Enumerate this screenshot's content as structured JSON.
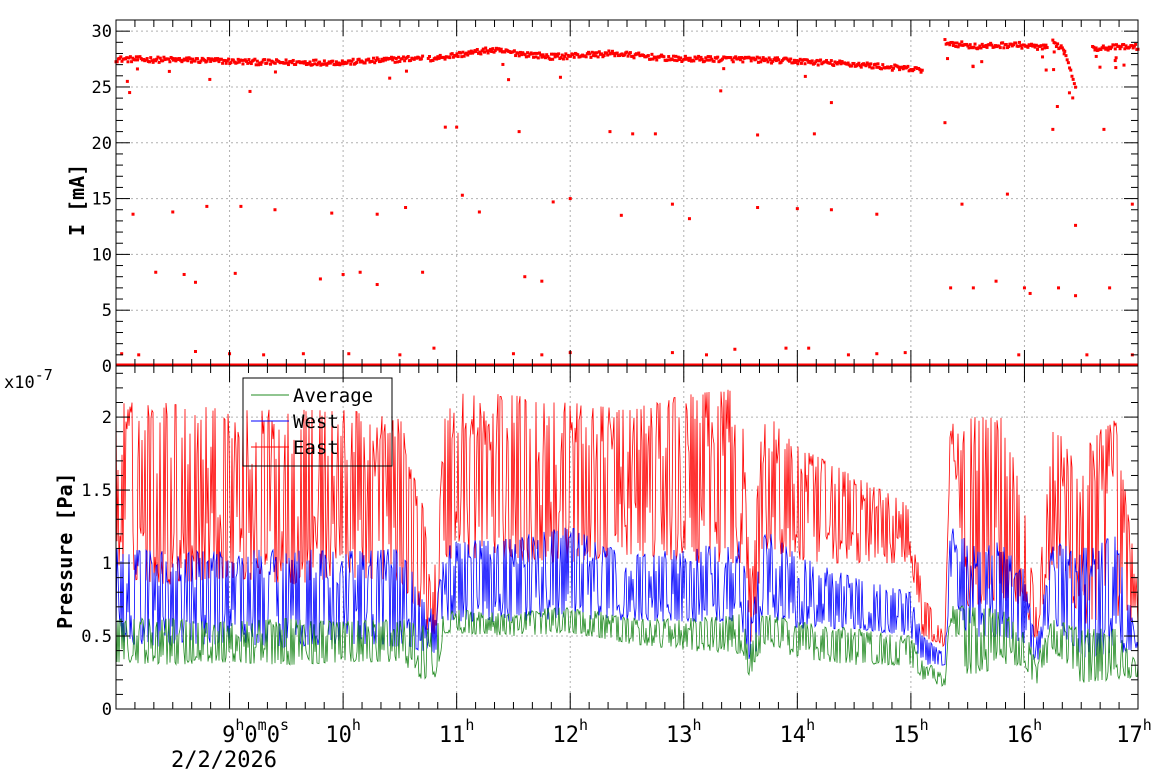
{
  "chart_data": [
    {
      "type": "scatter",
      "panel": "top",
      "ylabel": "I [mA]",
      "ylim": [
        0,
        31
      ],
      "yticks": [
        0,
        5,
        10,
        15,
        20,
        25,
        30
      ],
      "grid": true,
      "x_range_hours": [
        8.0,
        17.0
      ],
      "series": [
        {
          "color": "#ff0000",
          "baseline_segments": [
            {
              "from": 8.0,
              "to": 10.7,
              "values": [
                27.5,
                27.4,
                27.2,
                27.2,
                27.6
              ]
            },
            {
              "from": 10.75,
              "to": 15.1,
              "values": [
                27.5,
                28.3,
                27.7,
                28.0,
                27.5,
                27.5,
                27.3,
                27.0,
                26.5
              ]
            },
            {
              "from": 15.3,
              "to": 16.2,
              "values": [
                29.0,
                28.6,
                28.8,
                28.5
              ]
            },
            {
              "from": 16.25,
              "to": 16.45,
              "values": [
                29.0,
                28.4,
                25.1
              ]
            },
            {
              "from": 16.6,
              "to": 17.0,
              "values": [
                28.5,
                28.6
              ]
            }
          ],
          "outlier_points": [
            [
              8.1,
              25.5
            ],
            [
              8.12,
              24.5
            ],
            [
              9.18,
              24.6
            ],
            [
              10.9,
              21.4
            ],
            [
              11.0,
              21.4
            ],
            [
              11.55,
              21.0
            ],
            [
              12.35,
              21.0
            ],
            [
              12.55,
              20.8
            ],
            [
              12.75,
              20.8
            ],
            [
              13.65,
              20.7
            ],
            [
              14.15,
              20.8
            ],
            [
              15.3,
              21.8
            ],
            [
              16.25,
              21.2
            ],
            [
              16.7,
              21.2
            ],
            [
              14.3,
              23.6
            ],
            [
              8.15,
              13.6
            ],
            [
              8.5,
              13.8
            ],
            [
              8.8,
              14.3
            ],
            [
              9.1,
              14.3
            ],
            [
              9.4,
              14.0
            ],
            [
              9.9,
              13.7
            ],
            [
              10.3,
              13.6
            ],
            [
              10.55,
              14.2
            ],
            [
              11.05,
              15.3
            ],
            [
              11.2,
              13.8
            ],
            [
              11.85,
              14.7
            ],
            [
              12.0,
              15.0
            ],
            [
              12.45,
              13.5
            ],
            [
              12.9,
              14.5
            ],
            [
              13.05,
              13.2
            ],
            [
              13.65,
              14.2
            ],
            [
              14.0,
              14.1
            ],
            [
              14.3,
              14.0
            ],
            [
              14.7,
              13.6
            ],
            [
              15.45,
              14.5
            ],
            [
              15.85,
              15.4
            ],
            [
              16.45,
              12.6
            ],
            [
              16.95,
              14.5
            ],
            [
              8.35,
              8.4
            ],
            [
              8.6,
              8.2
            ],
            [
              8.7,
              7.5
            ],
            [
              9.05,
              8.3
            ],
            [
              9.8,
              7.8
            ],
            [
              10.0,
              8.2
            ],
            [
              10.15,
              8.4
            ],
            [
              10.3,
              7.3
            ],
            [
              10.7,
              8.4
            ],
            [
              11.6,
              8.0
            ],
            [
              11.75,
              7.6
            ],
            [
              15.35,
              7.0
            ],
            [
              15.55,
              7.0
            ],
            [
              15.75,
              7.6
            ],
            [
              16.0,
              7.0
            ],
            [
              16.05,
              6.5
            ],
            [
              16.3,
              7.0
            ],
            [
              16.45,
              6.3
            ],
            [
              16.75,
              7.0
            ],
            [
              8.05,
              1.1
            ],
            [
              8.2,
              1.0
            ],
            [
              8.7,
              1.3
            ],
            [
              9.0,
              1.1
            ],
            [
              9.3,
              1.0
            ],
            [
              9.65,
              1.1
            ],
            [
              10.05,
              1.1
            ],
            [
              10.5,
              1.0
            ],
            [
              10.8,
              1.6
            ],
            [
              11.5,
              1.1
            ],
            [
              11.75,
              1.0
            ],
            [
              12.0,
              1.2
            ],
            [
              12.9,
              1.2
            ],
            [
              13.2,
              1.0
            ],
            [
              13.45,
              1.5
            ],
            [
              13.9,
              1.6
            ],
            [
              14.1,
              1.6
            ],
            [
              14.45,
              1.0
            ],
            [
              14.7,
              1.1
            ],
            [
              14.95,
              1.2
            ],
            [
              15.95,
              1.0
            ],
            [
              16.55,
              1.0
            ],
            [
              16.95,
              1.0
            ]
          ],
          "zero_level": 0.0
        }
      ]
    },
    {
      "type": "line",
      "panel": "bottom",
      "ylabel": "Pressure [Pa]",
      "y_exponent_label": "x10",
      "y_exponent_power": "-7",
      "ylim": [
        0,
        2.35
      ],
      "yticks": [
        0,
        0.5,
        1,
        1.5,
        2
      ],
      "ytick_labels": [
        "0",
        "0.5",
        "1",
        "1.5",
        "2"
      ],
      "grid": true,
      "legend": {
        "placement": "top-left"
      },
      "x_range_hours": [
        8.0,
        17.0
      ],
      "series": [
        {
          "name": "Average",
          "color": "#228b22",
          "envelope": [
            [
              8.0,
              0.32,
              0.62
            ],
            [
              8.5,
              0.3,
              0.62
            ],
            [
              9.0,
              0.32,
              0.6
            ],
            [
              9.5,
              0.3,
              0.62
            ],
            [
              10.0,
              0.32,
              0.6
            ],
            [
              10.5,
              0.32,
              0.62
            ],
            [
              10.7,
              0.2,
              0.58
            ],
            [
              10.8,
              0.17,
              0.55
            ],
            [
              10.9,
              0.52,
              0.66
            ],
            [
              11.0,
              0.52,
              0.68
            ],
            [
              11.5,
              0.5,
              0.65
            ],
            [
              12.0,
              0.52,
              0.72
            ],
            [
              12.5,
              0.45,
              0.62
            ],
            [
              13.0,
              0.4,
              0.62
            ],
            [
              13.5,
              0.38,
              0.65
            ],
            [
              13.6,
              0.18,
              0.45
            ],
            [
              13.7,
              0.45,
              0.66
            ],
            [
              14.0,
              0.35,
              0.6
            ],
            [
              14.5,
              0.3,
              0.55
            ],
            [
              15.0,
              0.3,
              0.5
            ],
            [
              15.1,
              0.2,
              0.35
            ],
            [
              15.3,
              0.15,
              0.22
            ],
            [
              15.35,
              0.6,
              0.72
            ],
            [
              15.5,
              0.2,
              0.7
            ],
            [
              15.8,
              0.3,
              0.68
            ],
            [
              16.0,
              0.3,
              0.55
            ],
            [
              16.1,
              0.15,
              0.35
            ],
            [
              16.25,
              0.4,
              0.62
            ],
            [
              16.5,
              0.18,
              0.55
            ],
            [
              16.8,
              0.2,
              0.55
            ],
            [
              17.0,
              0.22,
              0.3
            ]
          ]
        },
        {
          "name": "West",
          "color": "#0000ff",
          "envelope": [
            [
              8.0,
              0.45,
              1.1
            ],
            [
              8.5,
              0.42,
              1.08
            ],
            [
              9.0,
              0.45,
              1.08
            ],
            [
              9.5,
              0.42,
              1.1
            ],
            [
              10.0,
              0.45,
              1.08
            ],
            [
              10.5,
              0.42,
              1.1
            ],
            [
              10.7,
              0.4,
              0.8
            ],
            [
              10.8,
              0.35,
              0.65
            ],
            [
              10.9,
              0.6,
              1.1
            ],
            [
              11.0,
              0.6,
              1.15
            ],
            [
              11.5,
              0.6,
              1.18
            ],
            [
              12.0,
              0.62,
              1.25
            ],
            [
              12.5,
              0.6,
              1.05
            ],
            [
              13.0,
              0.6,
              1.1
            ],
            [
              13.5,
              0.6,
              1.15
            ],
            [
              13.6,
              0.25,
              0.6
            ],
            [
              13.7,
              0.65,
              1.25
            ],
            [
              14.0,
              0.55,
              1.05
            ],
            [
              14.5,
              0.55,
              0.9
            ],
            [
              15.0,
              0.5,
              0.8
            ],
            [
              15.1,
              0.3,
              0.5
            ],
            [
              15.3,
              0.3,
              0.38
            ],
            [
              15.35,
              0.9,
              1.25
            ],
            [
              15.5,
              0.45,
              1.15
            ],
            [
              15.8,
              0.5,
              1.15
            ],
            [
              16.0,
              0.45,
              0.95
            ],
            [
              16.1,
              0.3,
              0.45
            ],
            [
              16.25,
              0.6,
              1.15
            ],
            [
              16.5,
              0.35,
              1.1
            ],
            [
              16.8,
              0.38,
              1.2
            ],
            [
              17.0,
              0.4,
              0.45
            ]
          ]
        },
        {
          "name": "East",
          "color": "#ff0000",
          "envelope": [
            [
              8.0,
              0.9,
              2.1
            ],
            [
              8.5,
              0.85,
              2.1
            ],
            [
              9.0,
              0.9,
              2.05
            ],
            [
              9.5,
              0.85,
              2.05
            ],
            [
              10.0,
              0.9,
              2.05
            ],
            [
              10.5,
              0.88,
              2.0
            ],
            [
              10.7,
              0.6,
              1.4
            ],
            [
              10.8,
              0.45,
              0.9
            ],
            [
              10.9,
              1.0,
              2.05
            ],
            [
              11.0,
              1.05,
              2.18
            ],
            [
              11.5,
              1.0,
              2.15
            ],
            [
              12.0,
              1.0,
              2.1
            ],
            [
              12.5,
              1.05,
              2.05
            ],
            [
              13.0,
              1.0,
              2.15
            ],
            [
              13.5,
              1.0,
              2.2
            ],
            [
              13.6,
              0.4,
              0.9
            ],
            [
              13.7,
              1.1,
              2.1
            ],
            [
              14.0,
              1.0,
              1.8
            ],
            [
              14.5,
              1.0,
              1.6
            ],
            [
              15.0,
              1.0,
              1.4
            ],
            [
              15.1,
              0.5,
              0.8
            ],
            [
              15.3,
              0.42,
              0.5
            ],
            [
              15.35,
              1.9,
              2.05
            ],
            [
              15.5,
              0.7,
              2.0
            ],
            [
              15.8,
              0.75,
              2.0
            ],
            [
              16.0,
              0.7,
              1.5
            ],
            [
              16.1,
              0.45,
              0.7
            ],
            [
              16.25,
              1.0,
              1.9
            ],
            [
              16.5,
              0.55,
              1.8
            ],
            [
              16.8,
              0.65,
              2.0
            ],
            [
              17.0,
              0.55,
              0.85
            ]
          ]
        }
      ]
    }
  ],
  "x_axis": {
    "ticks": [
      {
        "hour": 9,
        "label": "9",
        "suffix": "0m0s"
      },
      {
        "hour": 10,
        "label": "10"
      },
      {
        "hour": 11,
        "label": "11"
      },
      {
        "hour": 12,
        "label": "12"
      },
      {
        "hour": 13,
        "label": "13"
      },
      {
        "hour": 14,
        "label": "14"
      },
      {
        "hour": 15,
        "label": "15"
      },
      {
        "hour": 16,
        "label": "16"
      },
      {
        "hour": 17,
        "label": "17"
      }
    ],
    "hour_mark": "h",
    "date_label": "2/2/2026"
  },
  "colors": {
    "current": "#ff0000",
    "average": "#228b22",
    "west": "#0000ff",
    "east": "#ff0000",
    "grid": "#b0b0b0",
    "axis": "#000000"
  }
}
